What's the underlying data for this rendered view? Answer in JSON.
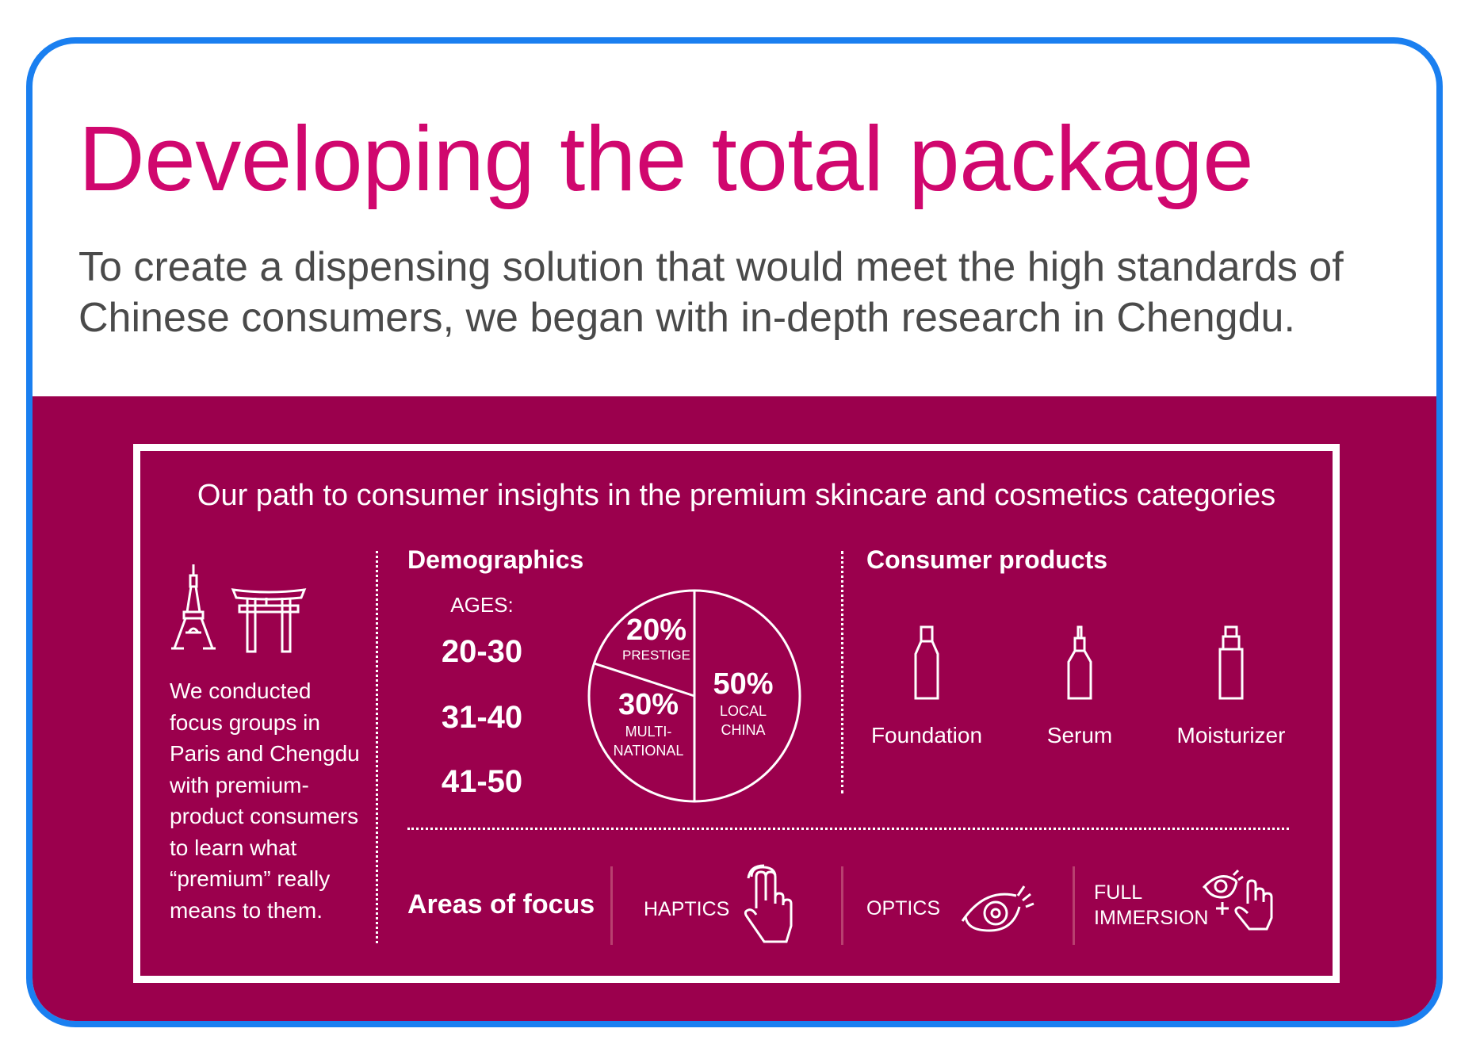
{
  "header": {
    "title": "Developing the total package",
    "subtitle_lines": [
      "To create a dispensing solution that would meet the high standards of",
      "Chinese consumers, we began with in-depth research in Chengdu."
    ]
  },
  "infographic": {
    "heading": "Our path to consumer insights in the premium skincare and cosmetics categories",
    "intro_lines": [
      "We conducted",
      "focus groups in",
      "Paris and Chengdu",
      "with premium-",
      "product consumers",
      "to learn what",
      "“premium” really",
      "means to them."
    ],
    "demographics": {
      "title": "Demographics",
      "ages_label": "AGES:",
      "ages": [
        "20-30",
        "31-40",
        "41-50"
      ]
    },
    "products": {
      "title": "Consumer products",
      "items": [
        {
          "label": "Foundation",
          "icon": "foundation-bottle-icon"
        },
        {
          "label": "Serum",
          "icon": "serum-dropper-icon"
        },
        {
          "label": "Moisturizer",
          "icon": "pump-bottle-icon"
        }
      ]
    },
    "focus": {
      "title": "Areas of focus",
      "items": [
        {
          "label_lines": [
            "HAPTICS"
          ],
          "icon": "touch-hand-icon"
        },
        {
          "label_lines": [
            "OPTICS"
          ],
          "icon": "eye-icon"
        },
        {
          "label_lines": [
            "FULL",
            "IMMERSION"
          ],
          "icon": "eye-plus-hand-icon"
        }
      ]
    }
  },
  "chart_data": {
    "type": "pie",
    "title": "Demographics",
    "slices": [
      {
        "label": "LOCAL CHINA",
        "value": 50,
        "text": "50%",
        "sub": [
          "LOCAL",
          "CHINA"
        ]
      },
      {
        "label": "MULTI-NATIONAL",
        "value": 30,
        "text": "30%",
        "sub": [
          "MULTI-",
          "NATIONAL"
        ]
      },
      {
        "label": "PRESTIGE",
        "value": 20,
        "text": "20%",
        "sub": [
          "PRESTIGE"
        ]
      }
    ]
  },
  "colors": {
    "title": "#d0076e",
    "band": "#9b004d",
    "frame": "#1a7ff0"
  }
}
